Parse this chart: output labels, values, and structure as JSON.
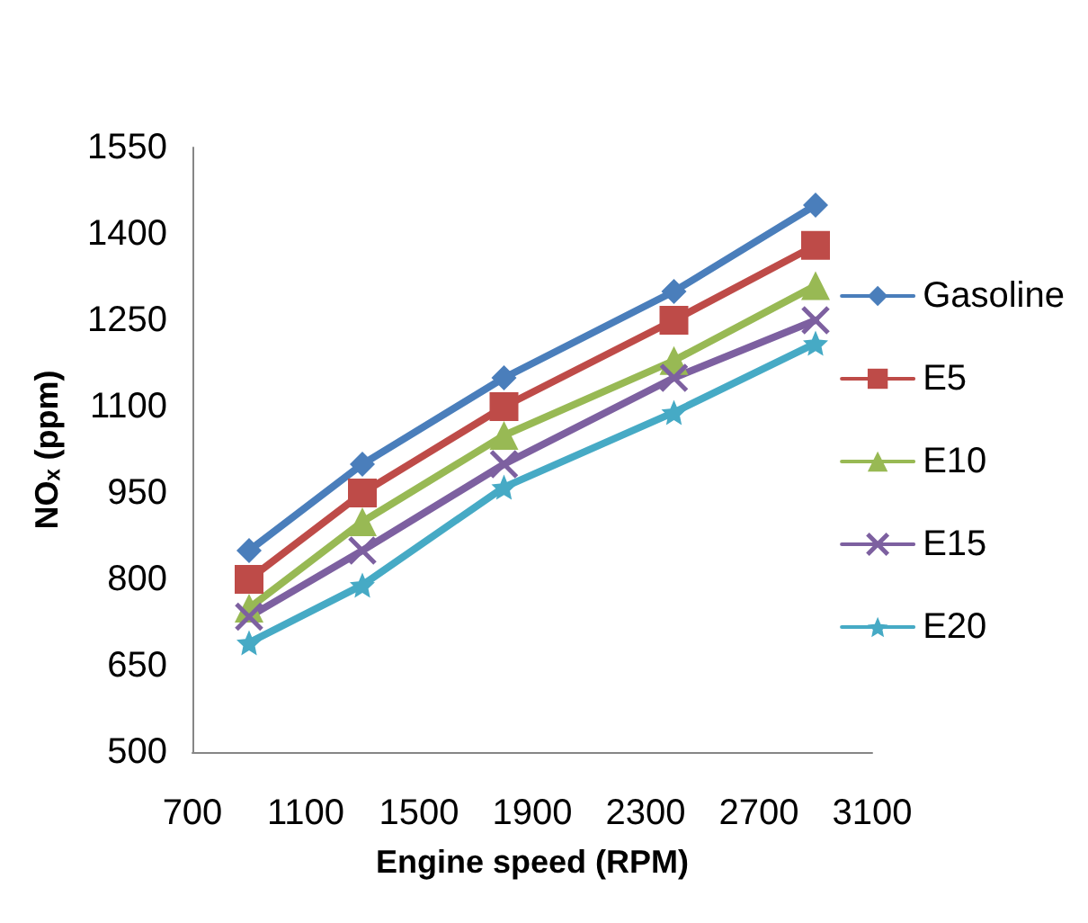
{
  "chart_data": {
    "type": "line",
    "xlabel": "Engine speed (RPM)",
    "ylabel": "NOₓ (ppm)",
    "x": [
      900,
      1300,
      1800,
      2400,
      2900
    ],
    "series": [
      {
        "name": "Gasoline",
        "color": "#4a7ebb",
        "marker": "diamond",
        "values": [
          850,
          1000,
          1150,
          1300,
          1450
        ]
      },
      {
        "name": "E5",
        "color": "#be4b48",
        "marker": "square",
        "values": [
          800,
          950,
          1100,
          1250,
          1380
        ]
      },
      {
        "name": "E10",
        "color": "#98b954",
        "marker": "triangle",
        "values": [
          750,
          900,
          1050,
          1180,
          1310
        ]
      },
      {
        "name": "E15",
        "color": "#7d60a0",
        "marker": "cross",
        "values": [
          735,
          850,
          1000,
          1150,
          1250
        ]
      },
      {
        "name": "E20",
        "color": "#46aac5",
        "marker": "star",
        "values": [
          690,
          790,
          960,
          1090,
          1210
        ]
      }
    ],
    "xlim": [
      700,
      3100
    ],
    "xticks": [
      700,
      1100,
      1500,
      1900,
      2300,
      2700,
      3100
    ],
    "ylim": [
      500,
      1550
    ],
    "yticks": [
      500,
      650,
      800,
      950,
      1100,
      1250,
      1400,
      1550
    ],
    "grid": false,
    "legend": "right"
  }
}
